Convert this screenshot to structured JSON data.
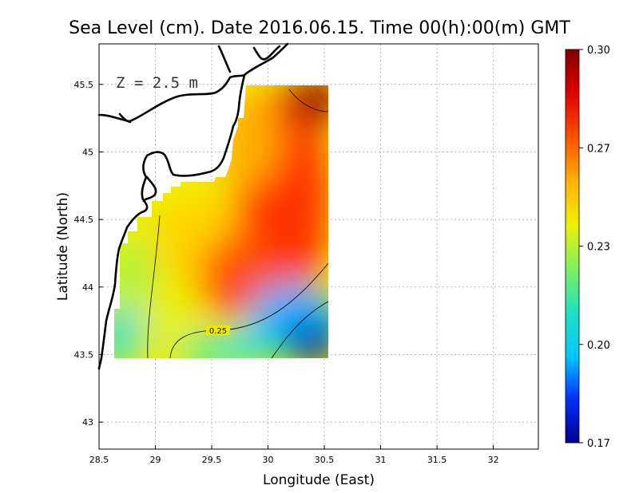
{
  "title": "Sea Level (cm). Date 2016.06.15. Time 00(h):00(m) GMT",
  "depth_label": "Z = 2.5 m",
  "xlabel": "Longitude (East)",
  "ylabel": "Latitude (North)",
  "x_ticks": [
    "28.5",
    "29",
    "29.5",
    "30",
    "30.5",
    "31",
    "31.5",
    "32"
  ],
  "y_ticks": [
    "43",
    "43.5",
    "44",
    "44.5",
    "45",
    "45.5"
  ],
  "colorbar": {
    "ticks": [
      "0.17",
      "0.20",
      "0.23",
      "0.27",
      "0.30"
    ],
    "range": [
      0.17,
      0.3
    ],
    "colors": [
      "#00008f",
      "#0030ff",
      "#00c8ff",
      "#20e0c0",
      "#80f060",
      "#f0f000",
      "#ffb000",
      "#ff5000",
      "#e00000",
      "#800000"
    ]
  },
  "contour_label": "0.25",
  "chart_data": {
    "type": "heatmap",
    "title": "Sea Level (cm). Date 2016.06.15. Time 00(h):00(m) GMT",
    "xlabel": "Longitude (East)",
    "ylabel": "Latitude (North)",
    "xlim": [
      28.5,
      32.4
    ],
    "ylim": [
      42.8,
      45.8
    ],
    "grid": true,
    "color_range": [
      0.17,
      0.3
    ],
    "data_extent": {
      "lon": [
        28.65,
        30.55
      ],
      "lat": [
        43.5,
        45.5
      ]
    },
    "value_samples": [
      {
        "lon": 30.4,
        "lat": 45.4,
        "value": 0.3
      },
      {
        "lon": 30.3,
        "lat": 44.6,
        "value": 0.28
      },
      {
        "lon": 29.7,
        "lat": 44.0,
        "value": 0.28
      },
      {
        "lon": 29.3,
        "lat": 44.5,
        "value": 0.26
      },
      {
        "lon": 28.9,
        "lat": 44.0,
        "value": 0.25
      },
      {
        "lon": 28.7,
        "lat": 43.7,
        "value": 0.22
      },
      {
        "lon": 30.0,
        "lat": 43.7,
        "value": 0.23
      },
      {
        "lon": 30.4,
        "lat": 43.6,
        "value": 0.18
      }
    ],
    "contours": [
      0.25
    ]
  }
}
